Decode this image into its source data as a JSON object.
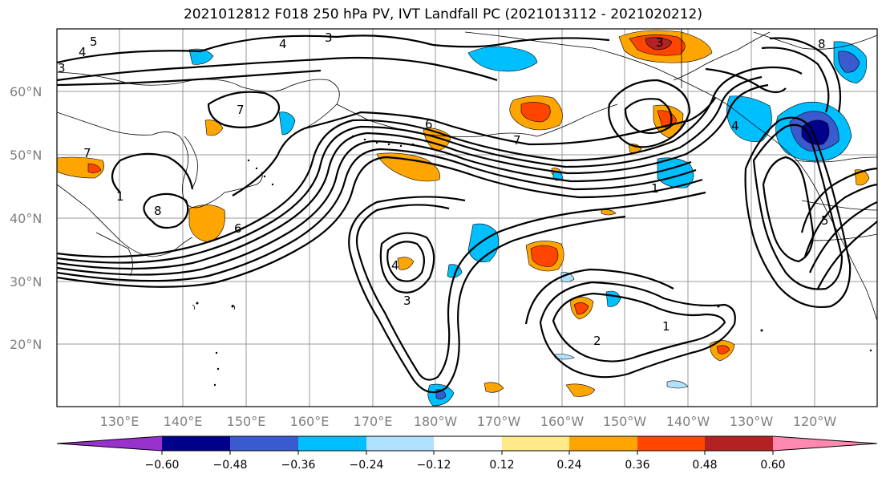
{
  "title": "2021012812 F018 250 hPa PV, IVT Landfall PC (2021013112 - 2021020212)",
  "lat_labels": [
    "60°N",
    "50°N",
    "40°N",
    "30°N",
    "20°N"
  ],
  "lon_labels": [
    "130°E",
    "140°E",
    "150°E",
    "160°E",
    "170°E",
    "180°W",
    "170°W",
    "160°W",
    "150°W",
    "140°W",
    "130°W",
    "120°W"
  ],
  "colorbar": {
    "labels": [
      "−0.60",
      "−0.48",
      "−0.36",
      "−0.24",
      "−0.12",
      "0.12",
      "0.24",
      "0.36",
      "0.48",
      "0.60"
    ],
    "colors": [
      "#9932CC",
      "#00008B",
      "#3A5BCF",
      "#00BFFF",
      "#B0E2FF",
      "#FFFFFF",
      "#FFE98A",
      "#FFA500",
      "#FF4500",
      "#B22222",
      "#FF89B0"
    ]
  },
  "contour_labels": [
    "4",
    "5",
    "3",
    "4",
    "3",
    "3",
    "4",
    "7",
    "1",
    "6",
    "8",
    "7",
    "7",
    "1",
    "4",
    "3",
    "2",
    "1",
    "5",
    "6",
    "8"
  ]
}
